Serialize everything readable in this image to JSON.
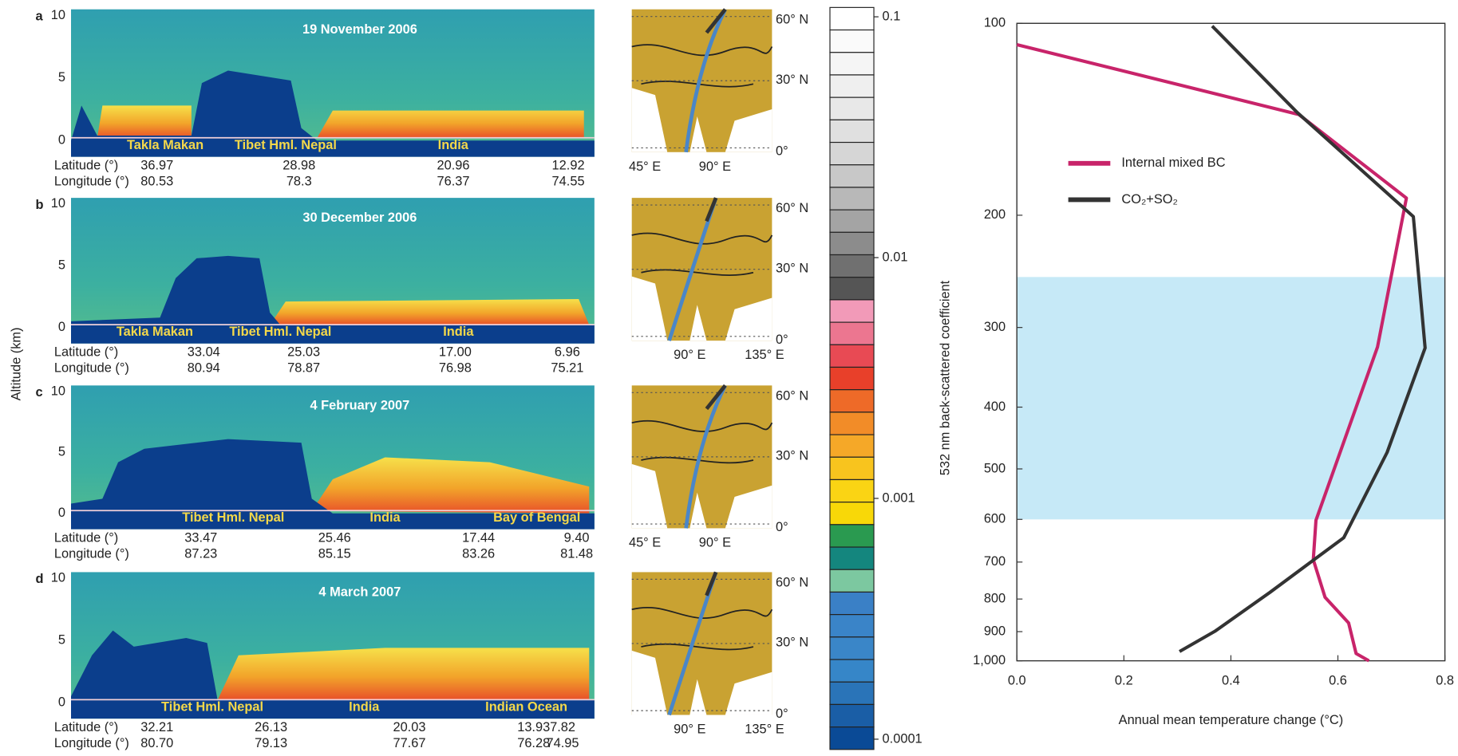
{
  "y_axis_label": "Altitude (km)",
  "altitude_ticks": [
    0,
    5,
    10
  ],
  "altitude_lim": [
    -1.3,
    10.5
  ],
  "row_labels": [
    "Latitude (°)",
    "Longitude (°)"
  ],
  "panels": [
    {
      "letter": "a",
      "date": "19 November 2006",
      "regions": [
        "Takla Makan",
        "Tibet Hml. Nepal",
        "India"
      ],
      "latitude": [
        "36.97",
        "28.98",
        "20.96",
        "12.92"
      ],
      "longitude": [
        "80.53",
        "78.3",
        "76.37",
        "74.55"
      ],
      "map": {
        "lat_labels": [
          "60° N",
          "30° N",
          "0°"
        ],
        "lon_labels": [
          "45° E",
          "90° E"
        ]
      }
    },
    {
      "letter": "b",
      "date": "30 December 2006",
      "regions": [
        "Takla Makan",
        "Tibet Hml. Nepal",
        "India"
      ],
      "latitude": [
        "33.04",
        "25.03",
        "17.00",
        "6.96"
      ],
      "longitude": [
        "80.94",
        "78.87",
        "76.98",
        "75.21"
      ],
      "map": {
        "lat_labels": [
          "60° N",
          "30° N",
          "0°"
        ],
        "lon_labels": [
          "90° E",
          "135° E"
        ]
      }
    },
    {
      "letter": "c",
      "date": "4 February 2007",
      "regions": [
        "Tibet Hml. Nepal",
        "India",
        "Bay of Bengal"
      ],
      "latitude": [
        "33.47",
        "25.46",
        "17.44",
        "9.40"
      ],
      "longitude": [
        "87.23",
        "85.15",
        "83.26",
        "81.48"
      ],
      "map": {
        "lat_labels": [
          "60° N",
          "30° N",
          "0°"
        ],
        "lon_labels": [
          "45° E",
          "90° E"
        ]
      }
    },
    {
      "letter": "d",
      "date": "4 March 2007",
      "regions": [
        "Tibet Hml. Nepal",
        "India",
        "Indian Ocean"
      ],
      "latitude": [
        "32.21",
        "26.13",
        "20.03",
        "13.93",
        "7.82"
      ],
      "longitude": [
        "80.70",
        "79.13",
        "77.67",
        "76.28",
        "74.95"
      ],
      "map": {
        "lat_labels": [
          "60° N",
          "30° N",
          "0°"
        ],
        "lon_labels": [
          "90° E",
          "135° E"
        ]
      }
    }
  ],
  "colorbar": {
    "label": "532 nm back-scattered coefficient",
    "log": true,
    "lim": [
      0.0001,
      0.1
    ],
    "ticks": [
      0.1,
      0.01,
      0.001,
      0.0001
    ],
    "colors": [
      "#ffffff",
      "#fafafa",
      "#f5f5f5",
      "#efefef",
      "#e8e8e8",
      "#e0e0e0",
      "#d6d6d6",
      "#c8c8c8",
      "#b8b8b8",
      "#a4a4a4",
      "#8c8c8c",
      "#707070",
      "#555555",
      "#f29ab8",
      "#ec7690",
      "#e84a54",
      "#e8402a",
      "#ee6a28",
      "#f28c28",
      "#f5a828",
      "#f8c41e",
      "#fad414",
      "#f8d808",
      "#2a9a50",
      "#14867e",
      "#7cc8a0",
      "#3a80c6",
      "#3a84c8",
      "#3a86c8",
      "#3686c8",
      "#2a74b8",
      "#1a5ea6",
      "#0a4a96"
    ]
  },
  "chart_data": {
    "type": "line",
    "xlabel": "Annual mean temperature change (°C)",
    "xlim": [
      0,
      0.8
    ],
    "xticks": [
      {
        "value": 0,
        "label": "0.0"
      },
      0.2,
      0.4,
      0.6,
      0.8
    ],
    "ylim": [
      100,
      1000
    ],
    "y_log": true,
    "y_inverted": true,
    "yticks": [
      100,
      200,
      300,
      400,
      500,
      600,
      700,
      800,
      900,
      {
        "value": 1000,
        "label": "1,000"
      }
    ],
    "shaded_range": [
      250,
      600
    ],
    "shade_color": "#c6e9f7",
    "series": [
      {
        "name": "Internal mixed BC",
        "color": "#c8246a",
        "values": [
          0.0,
          0.527,
          0.728,
          0.674,
          0.559,
          0.554,
          0.576,
          0.62,
          0.634,
          0.658
        ],
        "pressure": [
          108,
          139,
          188,
          322,
          602,
          694,
          795,
          872,
          974,
          1000
        ]
      },
      {
        "name": "CO₂+SO₂",
        "color": "#333333",
        "values": [
          0.365,
          0.524,
          0.741,
          0.763,
          0.692,
          0.611,
          0.473,
          0.37,
          0.304
        ],
        "pressure": [
          101,
          138,
          201,
          323,
          471,
          641,
          781,
          899,
          967
        ]
      }
    ]
  }
}
